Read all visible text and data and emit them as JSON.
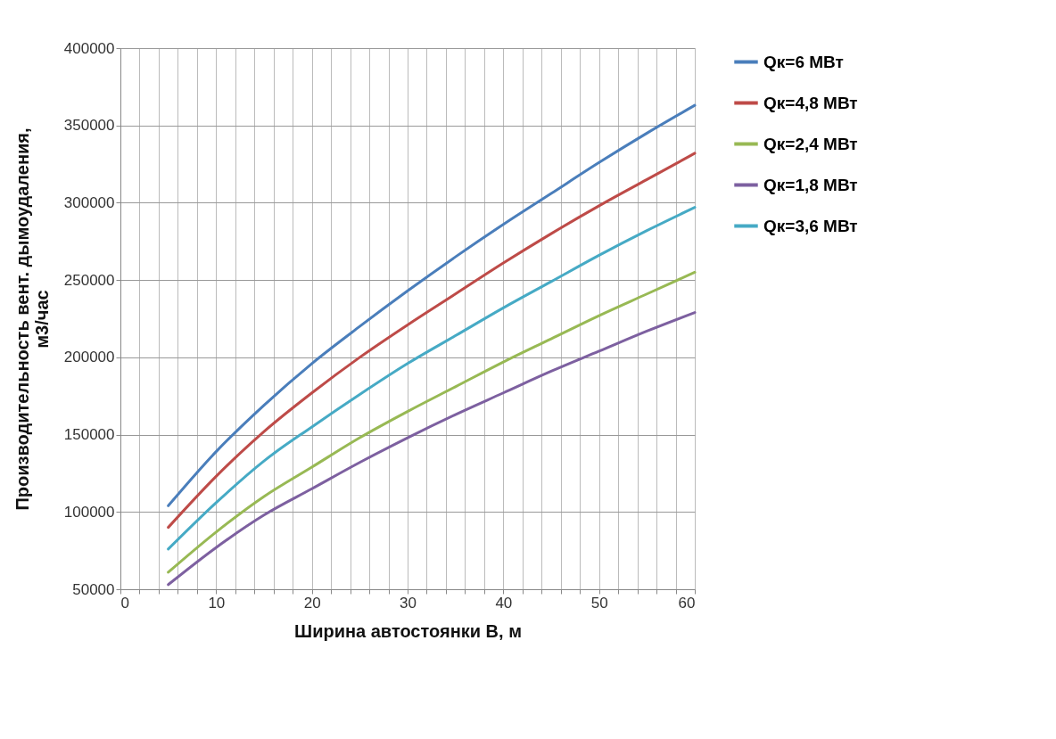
{
  "chart_data": {
    "type": "line",
    "xlabel": "Ширина автостоянки B, м",
    "ylabel": "Производительность вент. дымоудаления,\nм3/час",
    "x": [
      5,
      10,
      15,
      20,
      25,
      30,
      35,
      40,
      45,
      50,
      55,
      60
    ],
    "series": [
      {
        "name": "Qк=6 МВт",
        "color": "#4a7ebb",
        "values": [
          104000,
          139000,
          169000,
          196000,
          220000,
          243000,
          265000,
          286000,
          306000,
          326000,
          345000,
          363000
        ]
      },
      {
        "name": "Qк=4,8 МВт",
        "color": "#be4b48",
        "values": [
          90000,
          123000,
          152000,
          177000,
          200000,
          221000,
          241000,
          261000,
          280000,
          298000,
          315000,
          332000
        ]
      },
      {
        "name": "Qк=2,4 МВт",
        "color": "#98b954",
        "values": [
          61000,
          87000,
          110000,
          129000,
          148000,
          165000,
          181000,
          197000,
          212000,
          227000,
          241000,
          255000
        ]
      },
      {
        "name": "Qк=1,8 МВт",
        "color": "#7d60a0",
        "values": [
          53000,
          77000,
          98000,
          115000,
          132000,
          148000,
          163000,
          177000,
          191000,
          204000,
          217000,
          229000
        ]
      },
      {
        "name": "Qк=3,6 МВт",
        "color": "#46aac5",
        "values": [
          76000,
          106000,
          133000,
          155000,
          176000,
          196000,
          214000,
          232000,
          249000,
          266000,
          282000,
          297000
        ]
      }
    ],
    "xlim": [
      0,
      60
    ],
    "ylim": [
      50000,
      400000
    ],
    "xticks": [
      0,
      {
        "value": 2,
        "label": null
      },
      {
        "value": 4,
        "label": null
      },
      {
        "value": 6,
        "label": null
      },
      {
        "value": 8,
        "label": null
      },
      10,
      {
        "value": 12,
        "label": null
      },
      {
        "value": 14,
        "label": null
      },
      {
        "value": 16,
        "label": null
      },
      {
        "value": 18,
        "label": null
      },
      20,
      {
        "value": 22,
        "label": null
      },
      {
        "value": 24,
        "label": null
      },
      {
        "value": 26,
        "label": null
      },
      {
        "value": 28,
        "label": null
      },
      30,
      {
        "value": 32,
        "label": null
      },
      {
        "value": 34,
        "label": null
      },
      {
        "value": 36,
        "label": null
      },
      {
        "value": 38,
        "label": null
      },
      40,
      {
        "value": 42,
        "label": null
      },
      {
        "value": 44,
        "label": null
      },
      {
        "value": 46,
        "label": null
      },
      {
        "value": 48,
        "label": null
      },
      50,
      {
        "value": 52,
        "label": null
      },
      {
        "value": 54,
        "label": null
      },
      {
        "value": 56,
        "label": null
      },
      {
        "value": 58,
        "label": null
      },
      60
    ],
    "yticks": [
      50000,
      100000,
      150000,
      200000,
      250000,
      300000,
      350000,
      400000
    ],
    "grid": true,
    "legend": "right",
    "marker": "none",
    "line_style": "solid"
  }
}
